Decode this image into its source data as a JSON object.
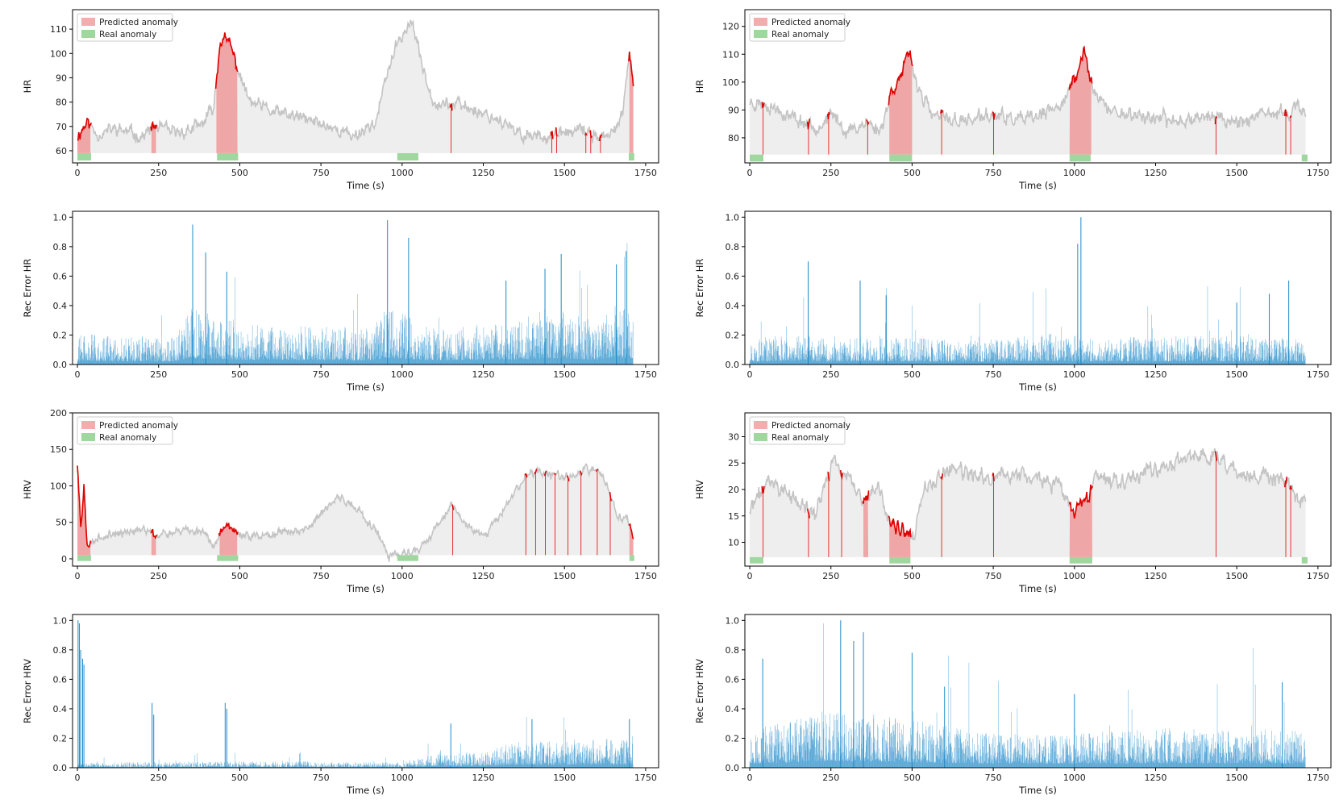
{
  "colors": {
    "signal": "#c4c4c4",
    "signal_fill": "#eeeeee",
    "predicted": "#f08080",
    "predicted_line": "#e00000",
    "real": "#9fd79f",
    "bar": "#1f8ac8"
  },
  "legend": {
    "predicted": "Predicted anomaly",
    "real": "Real anomaly"
  },
  "chart_data": [
    {
      "id": "hr-left",
      "type": "line",
      "ylabel": "HR",
      "xlabel": "Time (s)",
      "xlim": [
        -15,
        1790
      ],
      "ylim": [
        55,
        118
      ],
      "baseline": 59,
      "real_band": [
        56,
        59
      ],
      "xticks": [
        0,
        250,
        500,
        750,
        1000,
        1250,
        1500,
        1750
      ],
      "yticks": [
        60,
        70,
        80,
        90,
        100,
        110
      ],
      "seed": 11,
      "noise": 3.2,
      "series": [
        [
          0,
          66
        ],
        [
          30,
          72
        ],
        [
          60,
          67
        ],
        [
          120,
          69
        ],
        [
          200,
          66
        ],
        [
          240,
          70
        ],
        [
          300,
          67
        ],
        [
          380,
          70
        ],
        [
          420,
          78
        ],
        [
          440,
          106
        ],
        [
          470,
          104
        ],
        [
          490,
          95
        ],
        [
          530,
          80
        ],
        [
          600,
          76
        ],
        [
          700,
          73
        ],
        [
          780,
          70
        ],
        [
          850,
          66
        ],
        [
          920,
          72
        ],
        [
          960,
          95
        ],
        [
          1000,
          108
        ],
        [
          1030,
          113
        ],
        [
          1060,
          96
        ],
        [
          1100,
          80
        ],
        [
          1200,
          78
        ],
        [
          1300,
          73
        ],
        [
          1350,
          67
        ],
        [
          1450,
          66
        ],
        [
          1550,
          68
        ],
        [
          1640,
          65
        ],
        [
          1680,
          76
        ],
        [
          1700,
          98
        ],
        [
          1712,
          89
        ]
      ],
      "predicted": [
        [
          0,
          40
        ],
        [
          228,
          242
        ],
        [
          428,
          493
        ],
        [
          1150,
          1152
        ],
        [
          1460,
          1462
        ],
        [
          1475,
          1477
        ],
        [
          1565,
          1567
        ],
        [
          1580,
          1582
        ],
        [
          1610,
          1612
        ],
        [
          1700,
          1712
        ]
      ],
      "real": [
        [
          0,
          42
        ],
        [
          430,
          495
        ],
        [
          985,
          1050
        ],
        [
          1698,
          1715
        ]
      ],
      "legend_position": "top-left"
    },
    {
      "id": "hr-right",
      "type": "line",
      "ylabel": "HR",
      "xlabel": "Time (s)",
      "xlim": [
        -15,
        1790
      ],
      "ylim": [
        71,
        126
      ],
      "baseline": 74,
      "real_band": [
        71.5,
        74
      ],
      "xticks": [
        0,
        250,
        500,
        750,
        1000,
        1250,
        1500,
        1750
      ],
      "yticks": [
        80,
        90,
        100,
        110,
        120
      ],
      "seed": 23,
      "noise": 3.0,
      "series": [
        [
          0,
          93
        ],
        [
          60,
          92
        ],
        [
          120,
          88
        ],
        [
          200,
          84
        ],
        [
          260,
          88
        ],
        [
          300,
          82
        ],
        [
          360,
          86
        ],
        [
          400,
          82
        ],
        [
          440,
          98
        ],
        [
          470,
          103
        ],
        [
          490,
          110
        ],
        [
          520,
          98
        ],
        [
          560,
          88
        ],
        [
          650,
          86
        ],
        [
          750,
          88
        ],
        [
          850,
          86
        ],
        [
          940,
          90
        ],
        [
          990,
          98
        ],
        [
          1010,
          103
        ],
        [
          1030,
          112
        ],
        [
          1050,
          100
        ],
        [
          1100,
          90
        ],
        [
          1200,
          88
        ],
        [
          1300,
          86
        ],
        [
          1400,
          88
        ],
        [
          1500,
          86
        ],
        [
          1600,
          88
        ],
        [
          1680,
          90
        ],
        [
          1712,
          90
        ]
      ],
      "predicted": [
        [
          40,
          42
        ],
        [
          180,
          182
        ],
        [
          242,
          244
        ],
        [
          362,
          364
        ],
        [
          430,
          500
        ],
        [
          590,
          592
        ],
        [
          750,
          752
        ],
        [
          985,
          1052
        ],
        [
          1435,
          1437
        ],
        [
          1650,
          1652
        ],
        [
          1665,
          1667
        ]
      ],
      "real": [
        [
          0,
          42
        ],
        [
          430,
          500
        ],
        [
          985,
          1050
        ],
        [
          1700,
          1718
        ]
      ],
      "legend_position": "top-left"
    },
    {
      "id": "rec-hr-left",
      "type": "bar",
      "ylabel": "Rec Error HR",
      "xlabel": "Time (s)",
      "xlim": [
        -15,
        1790
      ],
      "ylim": [
        0,
        1.04
      ],
      "xticks": [
        0,
        250,
        500,
        750,
        1000,
        1250,
        1500,
        1750
      ],
      "yticks": [
        0.0,
        0.2,
        0.4,
        0.6,
        0.8,
        1.0
      ],
      "seed": 31,
      "n": 1712,
      "levels": [
        [
          0,
          0.12
        ],
        [
          300,
          0.1
        ],
        [
          340,
          0.22
        ],
        [
          520,
          0.15
        ],
        [
          900,
          0.14
        ],
        [
          960,
          0.22
        ],
        [
          1080,
          0.14
        ],
        [
          1350,
          0.16
        ],
        [
          1450,
          0.22
        ],
        [
          1600,
          0.16
        ],
        [
          1650,
          0.24
        ],
        [
          1712,
          0.2
        ]
      ],
      "spikes": [
        [
          355,
          0.95
        ],
        [
          395,
          0.76
        ],
        [
          460,
          0.63
        ],
        [
          955,
          0.98
        ],
        [
          1020,
          0.86
        ],
        [
          1320,
          0.57
        ],
        [
          1440,
          0.65
        ],
        [
          1490,
          0.75
        ],
        [
          1690,
          0.77
        ],
        [
          1660,
          0.68
        ]
      ]
    },
    {
      "id": "rec-hr-right",
      "type": "bar",
      "ylabel": "Rec Error HR",
      "xlabel": "Time (s)",
      "xlim": [
        -15,
        1790
      ],
      "ylim": [
        0,
        1.04
      ],
      "xticks": [
        0,
        250,
        500,
        750,
        1000,
        1250,
        1500,
        1750
      ],
      "yticks": [
        0.0,
        0.2,
        0.4,
        0.6,
        0.8,
        1.0
      ],
      "seed": 43,
      "n": 1712,
      "levels": [
        [
          0,
          0.09
        ],
        [
          150,
          0.13
        ],
        [
          250,
          0.09
        ],
        [
          400,
          0.11
        ],
        [
          700,
          0.09
        ],
        [
          950,
          0.12
        ],
        [
          1050,
          0.1
        ],
        [
          1400,
          0.11
        ],
        [
          1712,
          0.1
        ]
      ],
      "spikes": [
        [
          180,
          0.7
        ],
        [
          340,
          0.57
        ],
        [
          1020,
          1.0
        ],
        [
          1010,
          0.82
        ],
        [
          420,
          0.47
        ],
        [
          1600,
          0.48
        ],
        [
          1660,
          0.57
        ],
        [
          1500,
          0.42
        ]
      ]
    },
    {
      "id": "hrv-left",
      "type": "line",
      "ylabel": "HRV",
      "xlabel": "Time (s)",
      "xlim": [
        -15,
        1790
      ],
      "ylim": [
        -10,
        200
      ],
      "baseline": 5,
      "real_band": [
        -3,
        5
      ],
      "xticks": [
        0,
        250,
        500,
        750,
        1000,
        1250,
        1500,
        1750
      ],
      "yticks": [
        0,
        50,
        100,
        150,
        200
      ],
      "seed": 57,
      "noise": 7,
      "series": [
        [
          0,
          130
        ],
        [
          10,
          40
        ],
        [
          20,
          100
        ],
        [
          30,
          15
        ],
        [
          60,
          30
        ],
        [
          150,
          35
        ],
        [
          220,
          40
        ],
        [
          240,
          30
        ],
        [
          300,
          35
        ],
        [
          380,
          40
        ],
        [
          420,
          20
        ],
        [
          460,
          50
        ],
        [
          500,
          30
        ],
        [
          600,
          35
        ],
        [
          700,
          40
        ],
        [
          800,
          85
        ],
        [
          860,
          70
        ],
        [
          920,
          40
        ],
        [
          960,
          5
        ],
        [
          1050,
          10
        ],
        [
          1100,
          40
        ],
        [
          1150,
          75
        ],
        [
          1200,
          45
        ],
        [
          1260,
          35
        ],
        [
          1320,
          70
        ],
        [
          1380,
          115
        ],
        [
          1420,
          120
        ],
        [
          1500,
          110
        ],
        [
          1560,
          125
        ],
        [
          1620,
          115
        ],
        [
          1660,
          60
        ],
        [
          1700,
          50
        ],
        [
          1712,
          30
        ]
      ],
      "predicted": [
        [
          0,
          40
        ],
        [
          228,
          242
        ],
        [
          438,
          492
        ],
        [
          1155,
          1157
        ],
        [
          1380,
          1382
        ],
        [
          1410,
          1412
        ],
        [
          1440,
          1442
        ],
        [
          1470,
          1472
        ],
        [
          1510,
          1512
        ],
        [
          1550,
          1552
        ],
        [
          1600,
          1602
        ],
        [
          1640,
          1642
        ],
        [
          1700,
          1712
        ]
      ],
      "real": [
        [
          0,
          42
        ],
        [
          430,
          495
        ],
        [
          985,
          1050
        ],
        [
          1700,
          1715
        ]
      ],
      "legend_position": "top-left"
    },
    {
      "id": "hrv-right",
      "type": "line",
      "ylabel": "HRV",
      "xlabel": "Time (s)",
      "xlim": [
        -15,
        1790
      ],
      "ylim": [
        5.5,
        34.5
      ],
      "baseline": 7.2,
      "real_band": [
        6,
        7.2
      ],
      "xticks": [
        0,
        250,
        500,
        750,
        1000,
        1250,
        1500,
        1750
      ],
      "yticks": [
        10,
        15,
        20,
        25,
        30
      ],
      "seed": 71,
      "noise": 1.8,
      "series": [
        [
          0,
          16
        ],
        [
          60,
          22
        ],
        [
          120,
          19
        ],
        [
          200,
          15
        ],
        [
          260,
          26
        ],
        [
          300,
          22
        ],
        [
          350,
          18
        ],
        [
          400,
          20
        ],
        [
          430,
          14
        ],
        [
          470,
          12
        ],
        [
          500,
          10
        ],
        [
          540,
          20
        ],
        [
          620,
          24
        ],
        [
          700,
          22
        ],
        [
          800,
          23
        ],
        [
          900,
          22
        ],
        [
          960,
          20
        ],
        [
          1000,
          15
        ],
        [
          1040,
          18
        ],
        [
          1060,
          22
        ],
        [
          1150,
          22
        ],
        [
          1250,
          24
        ],
        [
          1350,
          26
        ],
        [
          1440,
          27
        ],
        [
          1500,
          23
        ],
        [
          1600,
          22
        ],
        [
          1660,
          21
        ],
        [
          1690,
          18
        ],
        [
          1712,
          17
        ]
      ],
      "predicted": [
        [
          40,
          42
        ],
        [
          180,
          182
        ],
        [
          242,
          244
        ],
        [
          282,
          284
        ],
        [
          350,
          365
        ],
        [
          430,
          495
        ],
        [
          590,
          592
        ],
        [
          750,
          752
        ],
        [
          985,
          1055
        ],
        [
          1435,
          1437
        ],
        [
          1650,
          1652
        ],
        [
          1665,
          1667
        ]
      ],
      "real": [
        [
          0,
          42
        ],
        [
          430,
          495
        ],
        [
          985,
          1055
        ],
        [
          1700,
          1718
        ]
      ],
      "legend_position": "top-left"
    },
    {
      "id": "rec-hrv-left",
      "type": "bar",
      "ylabel": "Rec Error HRV",
      "xlabel": "Time (s)",
      "xlim": [
        -15,
        1790
      ],
      "ylim": [
        0,
        1.04
      ],
      "xticks": [
        0,
        250,
        500,
        750,
        1000,
        1250,
        1500,
        1750
      ],
      "yticks": [
        0.0,
        0.2,
        0.4,
        0.6,
        0.8,
        1.0
      ],
      "seed": 83,
      "n": 1712,
      "levels": [
        [
          0,
          0.02
        ],
        [
          700,
          0.025
        ],
        [
          1000,
          0.02
        ],
        [
          1100,
          0.05
        ],
        [
          1250,
          0.06
        ],
        [
          1350,
          0.1
        ],
        [
          1500,
          0.1
        ],
        [
          1712,
          0.12
        ]
      ],
      "spikes": [
        [
          2,
          1.0
        ],
        [
          6,
          0.98
        ],
        [
          10,
          0.8
        ],
        [
          16,
          0.74
        ],
        [
          20,
          0.7
        ],
        [
          230,
          0.44
        ],
        [
          235,
          0.36
        ],
        [
          455,
          0.44
        ],
        [
          460,
          0.4
        ],
        [
          1150,
          0.3
        ],
        [
          1400,
          0.33
        ],
        [
          1700,
          0.33
        ]
      ]
    },
    {
      "id": "rec-hrv-right",
      "type": "bar",
      "ylabel": "Rec Error HRV",
      "xlabel": "Time (s)",
      "xlim": [
        -15,
        1790
      ],
      "ylim": [
        0,
        1.04
      ],
      "xticks": [
        0,
        250,
        500,
        750,
        1000,
        1250,
        1500,
        1750
      ],
      "yticks": [
        0.0,
        0.2,
        0.4,
        0.6,
        0.8,
        1.0
      ],
      "seed": 97,
      "n": 1712,
      "levels": [
        [
          0,
          0.14
        ],
        [
          250,
          0.22
        ],
        [
          400,
          0.2
        ],
        [
          700,
          0.14
        ],
        [
          1000,
          0.13
        ],
        [
          1300,
          0.15
        ],
        [
          1712,
          0.14
        ]
      ],
      "spikes": [
        [
          280,
          1.0
        ],
        [
          320,
          0.86
        ],
        [
          350,
          0.92
        ],
        [
          40,
          0.74
        ],
        [
          500,
          0.78
        ],
        [
          1640,
          0.58
        ],
        [
          1000,
          0.5
        ],
        [
          600,
          0.55
        ]
      ]
    }
  ]
}
